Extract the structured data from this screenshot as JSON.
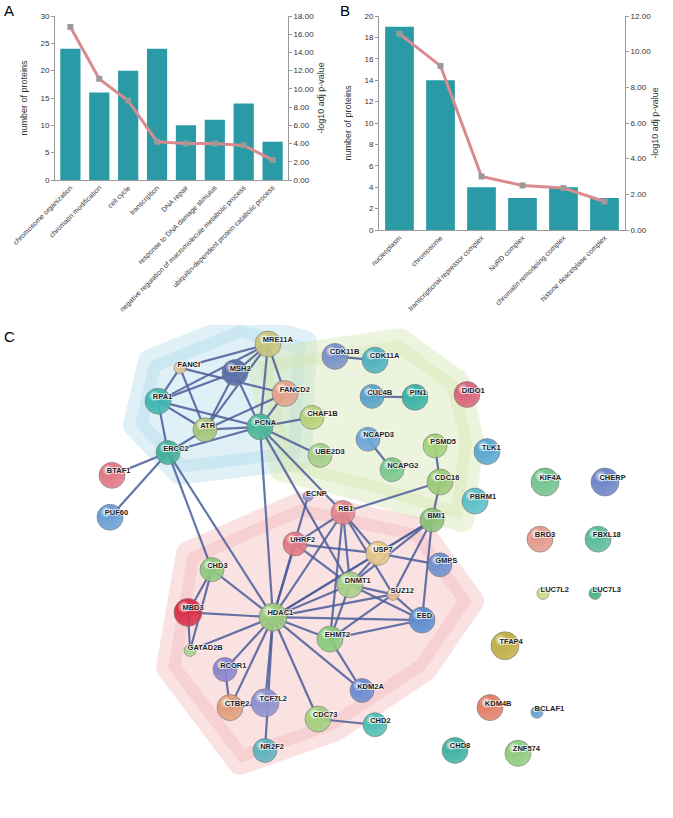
{
  "chart_data": [
    {
      "type": "bar",
      "panel": "A",
      "categories": [
        "chromosome organization",
        "chromatin modification",
        "cell cycle",
        "transcription",
        "DNA repair",
        "response to DNA damage stimulus",
        "negative regulation of macromolecule metabolic process",
        "ubiquitin-dependent protein catabolic process"
      ],
      "ylabel": "number of proteins",
      "y2label": "-log10 adj p-value",
      "series": [
        {
          "type": "bar",
          "color": "#2a9ba6",
          "values": [
            24,
            16,
            20,
            24,
            10,
            11,
            14,
            7
          ]
        },
        {
          "type": "line",
          "axis": "y2",
          "color": "#d98b8e",
          "marker": "square",
          "values": [
            16.8,
            11.1,
            8.7,
            4.2,
            4.0,
            4.0,
            3.8,
            2.2
          ]
        }
      ],
      "ylim": [
        0,
        30
      ],
      "yticks": [
        0,
        5,
        10,
        15,
        20,
        25,
        30
      ],
      "y2lim": [
        0,
        18
      ],
      "y2ticks": [
        {
          "value": 0,
          "label": "0.00"
        },
        {
          "value": 2,
          "label": "2.00"
        },
        {
          "value": 4,
          "label": "4.00"
        },
        {
          "value": 6,
          "label": "6.00"
        },
        {
          "value": 8,
          "label": "8.00"
        },
        {
          "value": 10,
          "label": "10.00"
        },
        {
          "value": 12,
          "label": "12.00"
        },
        {
          "value": 14,
          "label": "14.00"
        },
        {
          "value": 16,
          "label": "16.00"
        },
        {
          "value": 18,
          "label": "18.00"
        }
      ],
      "grid": false
    },
    {
      "type": "bar",
      "panel": "B",
      "categories": [
        "nucleoplasm",
        "chromosome",
        "transcriptional repressor complex",
        "NuRD complex",
        "chromatin remodeling complex",
        "histone deacetylase complex"
      ],
      "ylabel": "number of proteins",
      "y2label": "-log10 adj p-value",
      "series": [
        {
          "type": "bar",
          "color": "#2a9ba6",
          "values": [
            19,
            14,
            4,
            3,
            4,
            3
          ]
        },
        {
          "type": "line",
          "axis": "y2",
          "color": "#d98b8e",
          "marker": "square",
          "values": [
            11.0,
            9.2,
            3.0,
            2.5,
            2.35,
            1.6
          ]
        }
      ],
      "ylim": [
        0,
        20
      ],
      "yticks": [
        0,
        2,
        4,
        6,
        8,
        10,
        12,
        14,
        16,
        18,
        20
      ],
      "y2lim": [
        0,
        12
      ],
      "y2ticks": [
        {
          "value": 0,
          "label": "0.00"
        },
        {
          "value": 2,
          "label": "2.00"
        },
        {
          "value": 4,
          "label": "4.00"
        },
        {
          "value": 6,
          "label": "6.00"
        },
        {
          "value": 8,
          "label": "8.00"
        },
        {
          "value": 10,
          "label": "10.00"
        },
        {
          "value": 12,
          "label": "12.00"
        }
      ],
      "grid": false
    }
  ],
  "diagram": {
    "panel": "C",
    "nodes": [
      {
        "label": "MRE11A",
        "color": "#c9c67e"
      },
      {
        "label": "FANCI",
        "color": "#e0c89a"
      },
      {
        "label": "MSH3",
        "color": "#5b6fa8"
      },
      {
        "label": "FANCD2",
        "color": "#e3a38c"
      },
      {
        "label": "RPA1",
        "color": "#3fb8b0"
      },
      {
        "label": "ATR",
        "color": "#a6c77a"
      },
      {
        "label": "PCNA",
        "color": "#4fb89a"
      },
      {
        "label": "CHAF1B",
        "color": "#b8d27a"
      },
      {
        "label": "CDK11B",
        "color": "#7c92c9"
      },
      {
        "label": "CDK11A",
        "color": "#4fb3c0"
      },
      {
        "label": "CUL4B",
        "color": "#5aa3c9"
      },
      {
        "label": "PIN1",
        "color": "#3db3a4"
      },
      {
        "label": "DIDO1",
        "color": "#d9647a"
      },
      {
        "label": "NCAPD3",
        "color": "#6fa7d6"
      },
      {
        "label": "UBE2D3",
        "color": "#a6cf8a"
      },
      {
        "label": "PSMD5",
        "color": "#a4d279"
      },
      {
        "label": "NCAPG2",
        "color": "#7cc98c"
      },
      {
        "label": "TLK1",
        "color": "#5aa9cf"
      },
      {
        "label": "CDC16",
        "color": "#9bca7a"
      },
      {
        "label": "ERCC2",
        "color": "#44b39a"
      },
      {
        "label": "BTAF1",
        "color": "#e07a86"
      },
      {
        "label": "PUF60",
        "color": "#6c9fd4"
      },
      {
        "label": "ECNP",
        "color": "#9b8fcf"
      },
      {
        "label": "RB1",
        "color": "#e3878e"
      },
      {
        "label": "BMI1",
        "color": "#8ec27a"
      },
      {
        "label": "PBRM1",
        "color": "#5cc0c9"
      },
      {
        "label": "KIF4A",
        "color": "#74c48e"
      },
      {
        "label": "CHERP",
        "color": "#6f86c8"
      },
      {
        "label": "BRD3",
        "color": "#e39a8e"
      },
      {
        "label": "FBXL18",
        "color": "#5bbd9c"
      },
      {
        "label": "LUC7L2",
        "color": "#c7db8a"
      },
      {
        "label": "LUC7L3",
        "color": "#4ab384"
      },
      {
        "label": "UHRF2",
        "color": "#e27a86"
      },
      {
        "label": "USP7",
        "color": "#e8c88a"
      },
      {
        "label": "DNMT1",
        "color": "#a8d08a"
      },
      {
        "label": "SUZ12",
        "color": "#e6b792"
      },
      {
        "label": "GMPS",
        "color": "#6f92cf"
      },
      {
        "label": "EED",
        "color": "#5f8fd0"
      },
      {
        "label": "CHD3",
        "color": "#8fc97e"
      },
      {
        "label": "MBD3",
        "color": "#d8334a"
      },
      {
        "label": "HDAC1",
        "color": "#9ccb7e"
      },
      {
        "label": "GATAD2B",
        "color": "#a9d28f"
      },
      {
        "label": "RCOR1",
        "color": "#8b86cf"
      },
      {
        "label": "EHMT2",
        "color": "#8ccb7e"
      },
      {
        "label": "CTBP2",
        "color": "#e0a07f"
      },
      {
        "label": "TCF7L2",
        "color": "#8f92cf"
      },
      {
        "label": "KDM2A",
        "color": "#6e8dd0"
      },
      {
        "label": "CDC73",
        "color": "#a7d07f"
      },
      {
        "label": "CHD2",
        "color": "#50bfb3"
      },
      {
        "label": "NR2F2",
        "color": "#5fb3bf"
      },
      {
        "label": "TFAP4",
        "color": "#bfb04a"
      },
      {
        "label": "KDM4B",
        "color": "#e0826a"
      },
      {
        "label": "BCLAF1",
        "color": "#6aa3d6"
      },
      {
        "label": "ZNF574",
        "color": "#90cc7e"
      },
      {
        "label": "CHD8",
        "color": "#40b3a4"
      }
    ],
    "edges": [
      [
        "MRE11A",
        "FANCI"
      ],
      [
        "MRE11A",
        "MSH3"
      ],
      [
        "MRE11A",
        "FANCD2"
      ],
      [
        "MRE11A",
        "RPA1"
      ],
      [
        "MRE11A",
        "ATR"
      ],
      [
        "MRE11A",
        "PCNA"
      ],
      [
        "FANCI",
        "FANCD2"
      ],
      [
        "FANCI",
        "RPA1"
      ],
      [
        "FANCI",
        "ATR"
      ],
      [
        "MSH3",
        "RPA1"
      ],
      [
        "MSH3",
        "PCNA"
      ],
      [
        "MSH3",
        "ATR"
      ],
      [
        "FANCD2",
        "ATR"
      ],
      [
        "FANCD2",
        "PCNA"
      ],
      [
        "RPA1",
        "ATR"
      ],
      [
        "RPA1",
        "PCNA"
      ],
      [
        "RPA1",
        "ERCC2"
      ],
      [
        "ATR",
        "PCNA"
      ],
      [
        "ATR",
        "ERCC2"
      ],
      [
        "PCNA",
        "ERCC2"
      ],
      [
        "PCNA",
        "CHAF1B"
      ],
      [
        "PCNA",
        "RB1"
      ],
      [
        "PCNA",
        "HDAC1"
      ],
      [
        "PCNA",
        "DNMT1"
      ],
      [
        "PCNA",
        "UBE2D3"
      ],
      [
        "ERCC2",
        "BTAF1"
      ],
      [
        "ERCC2",
        "PUF60"
      ],
      [
        "ERCC2",
        "CHD3"
      ],
      [
        "ERCC2",
        "HDAC1"
      ],
      [
        "CDK11B",
        "CDK11A"
      ],
      [
        "CUL4B",
        "PIN1"
      ],
      [
        "NCAPD3",
        "NCAPG2"
      ],
      [
        "PSMD5",
        "CDC16"
      ],
      [
        "CDC16",
        "BMI1"
      ],
      [
        "RB1",
        "CDC16"
      ],
      [
        "RB1",
        "HDAC1"
      ],
      [
        "RB1",
        "DNMT1"
      ],
      [
        "RB1",
        "UHRF2"
      ],
      [
        "RB1",
        "USP7"
      ],
      [
        "RB1",
        "EHMT2"
      ],
      [
        "RB1",
        "SUZ12"
      ],
      [
        "BMI1",
        "EED"
      ],
      [
        "BMI1",
        "SUZ12"
      ],
      [
        "BMI1",
        "USP7"
      ],
      [
        "BMI1",
        "HDAC1"
      ],
      [
        "BMI1",
        "DNMT1"
      ],
      [
        "ECNP",
        "HDAC1"
      ],
      [
        "HDAC1",
        "CHD3"
      ],
      [
        "HDAC1",
        "MBD3"
      ],
      [
        "HDAC1",
        "GATAD2B"
      ],
      [
        "HDAC1",
        "RCOR1"
      ],
      [
        "HDAC1",
        "CTBP2"
      ],
      [
        "HDAC1",
        "TCF7L2"
      ],
      [
        "HDAC1",
        "CDC73"
      ],
      [
        "HDAC1",
        "KDM2A"
      ],
      [
        "HDAC1",
        "EHMT2"
      ],
      [
        "HDAC1",
        "DNMT1"
      ],
      [
        "HDAC1",
        "UHRF2"
      ],
      [
        "HDAC1",
        "USP7"
      ],
      [
        "HDAC1",
        "SUZ12"
      ],
      [
        "HDAC1",
        "EED"
      ],
      [
        "HDAC1",
        "NR2F2"
      ],
      [
        "CHD3",
        "MBD3"
      ],
      [
        "MBD3",
        "GATAD2B"
      ],
      [
        "CHD3",
        "GATAD2B"
      ],
      [
        "RCOR1",
        "CTBP2"
      ],
      [
        "CTBP2",
        "TCF7L2"
      ],
      [
        "DNMT1",
        "UHRF2"
      ],
      [
        "DNMT1",
        "USP7"
      ],
      [
        "DNMT1",
        "EHMT2"
      ],
      [
        "DNMT1",
        "SUZ12"
      ],
      [
        "DNMT1",
        "EED"
      ],
      [
        "EHMT2",
        "SUZ12"
      ],
      [
        "EHMT2",
        "EED"
      ],
      [
        "SUZ12",
        "EED"
      ],
      [
        "EHMT2",
        "KDM2A"
      ],
      [
        "CDC73",
        "CHD2"
      ],
      [
        "UHRF2",
        "USP7"
      ],
      [
        "USP7",
        "GMPS"
      ]
    ]
  }
}
